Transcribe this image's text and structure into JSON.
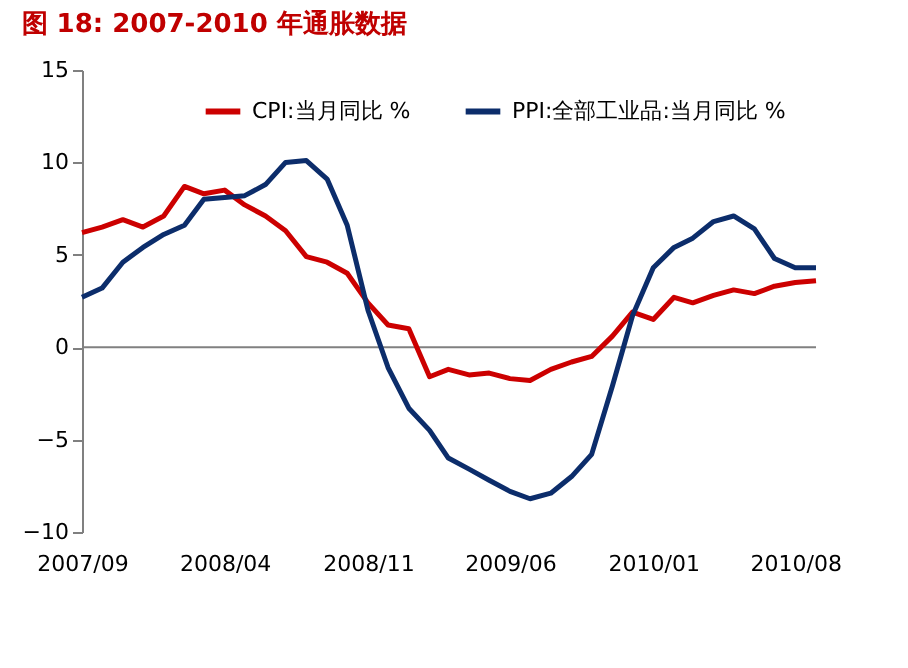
{
  "chart_data": {
    "type": "line",
    "title": "图 18: 2007-2010 年通胀数据",
    "x": [
      "2007-09",
      "2007-10",
      "2007-11",
      "2007-12",
      "2008-01",
      "2008-02",
      "2008-03",
      "2008-04",
      "2008-05",
      "2008-06",
      "2008-07",
      "2008-08",
      "2008-09",
      "2008-10",
      "2008-11",
      "2008-12",
      "2009-01",
      "2009-02",
      "2009-03",
      "2009-04",
      "2009-05",
      "2009-06",
      "2009-07",
      "2009-08",
      "2009-09",
      "2009-10",
      "2009-11",
      "2009-12",
      "2010-01",
      "2010-02",
      "2010-03",
      "2010-04",
      "2010-05",
      "2010-06",
      "2010-07",
      "2010-08",
      "2010-09"
    ],
    "series": [
      {
        "name": "CPI:当月同比 %",
        "color": "#cc0000",
        "values": [
          6.2,
          6.5,
          6.9,
          6.5,
          7.1,
          8.7,
          8.3,
          8.5,
          7.7,
          7.1,
          6.3,
          4.9,
          4.6,
          4.0,
          2.4,
          1.2,
          1.0,
          -1.6,
          -1.2,
          -1.5,
          -1.4,
          -1.7,
          -1.8,
          -1.2,
          -0.8,
          -0.5,
          0.6,
          1.9,
          1.5,
          2.7,
          2.4,
          2.8,
          3.1,
          2.9,
          3.3,
          3.5,
          3.6
        ]
      },
      {
        "name": "PPI:全部工业品:当月同比 %",
        "color": "#0c2d6b",
        "values": [
          2.7,
          3.2,
          4.6,
          5.4,
          6.1,
          6.6,
          8.0,
          8.1,
          8.2,
          8.8,
          10.0,
          10.1,
          9.1,
          6.6,
          2.0,
          -1.1,
          -3.3,
          -4.5,
          -6.0,
          -6.6,
          -7.2,
          -7.8,
          -8.2,
          -7.9,
          -7.0,
          -5.8,
          -2.1,
          1.7,
          4.3,
          5.4,
          5.9,
          6.8,
          7.1,
          6.4,
          4.8,
          4.3,
          4.3
        ]
      }
    ],
    "xlim": [
      "2007-09",
      "2010-09"
    ],
    "xticks": [
      {
        "value": "2007-09",
        "label": "2007/09"
      },
      {
        "value": "2008-04",
        "label": "2008/04"
      },
      {
        "value": "2008-11",
        "label": "2008/11"
      },
      {
        "value": "2009-06",
        "label": "2009/06"
      },
      {
        "value": "2010-01",
        "label": "2010/01"
      },
      {
        "value": "2010-08",
        "label": "2010/08"
      }
    ],
    "ylim": [
      -10,
      15
    ],
    "yticks": [
      -10,
      -5,
      0,
      5,
      10,
      15
    ],
    "ref_lines": [
      {
        "axis": "y",
        "value": 0,
        "color": "#808080"
      }
    ],
    "grid": false,
    "legend": "top",
    "marker": "none",
    "line_style": "solid"
  }
}
